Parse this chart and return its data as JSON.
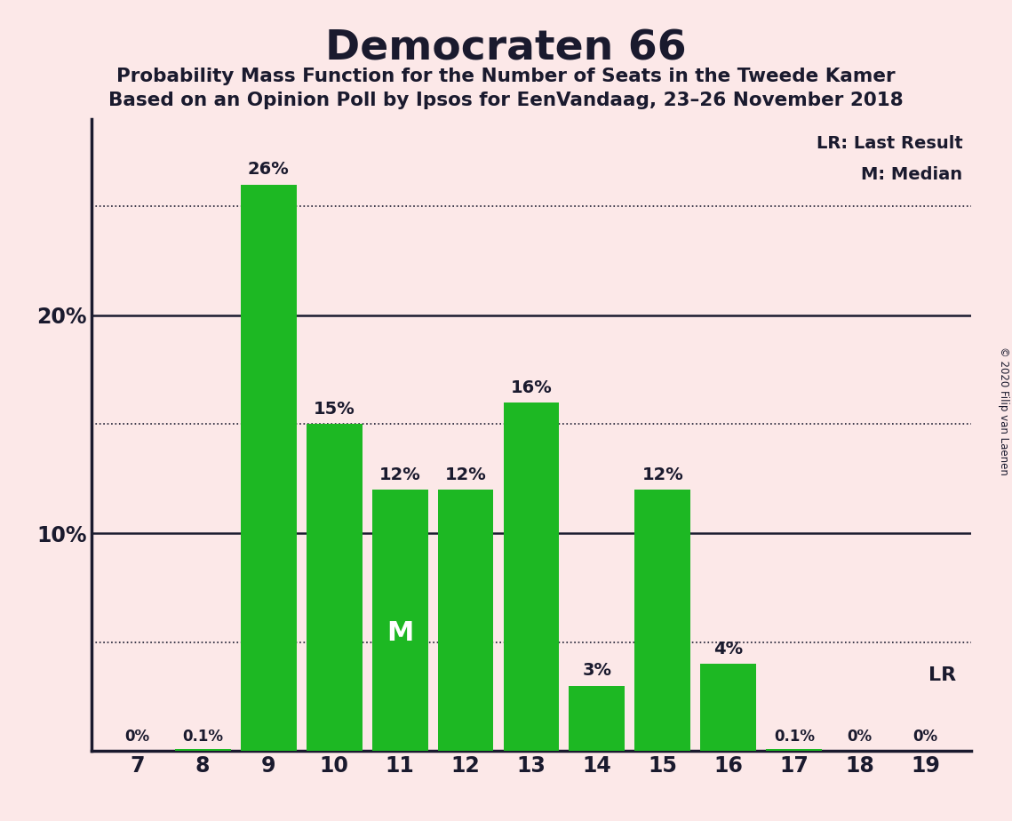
{
  "title": "Democraten 66",
  "subtitle1": "Probability Mass Function for the Number of Seats in the Tweede Kamer",
  "subtitle2": "Based on an Opinion Poll by Ipsos for EenVandaag, 23–26 November 2018",
  "copyright": "© 2020 Filip van Laenen",
  "categories": [
    7,
    8,
    9,
    10,
    11,
    12,
    13,
    14,
    15,
    16,
    17,
    18,
    19
  ],
  "values": [
    0.0,
    0.1,
    26.0,
    15.0,
    12.0,
    12.0,
    16.0,
    3.0,
    12.0,
    4.0,
    0.1,
    0.0,
    0.0
  ],
  "labels": [
    "0%",
    "0.1%",
    "26%",
    "15%",
    "12%",
    "12%",
    "16%",
    "3%",
    "12%",
    "4%",
    "0.1%",
    "0%",
    "0%"
  ],
  "bar_color": "#1db823",
  "background_color": "#fce8e8",
  "text_color": "#1a1a2e",
  "median_seat": 11,
  "lr_seat": 19,
  "ylim": [
    0,
    29
  ],
  "dotted_lines": [
    5,
    15,
    25
  ],
  "solid_lines": [
    10,
    20
  ],
  "legend_lr": "LR: Last Result",
  "legend_m": "M: Median",
  "median_label": "M",
  "lr_label": "LR"
}
